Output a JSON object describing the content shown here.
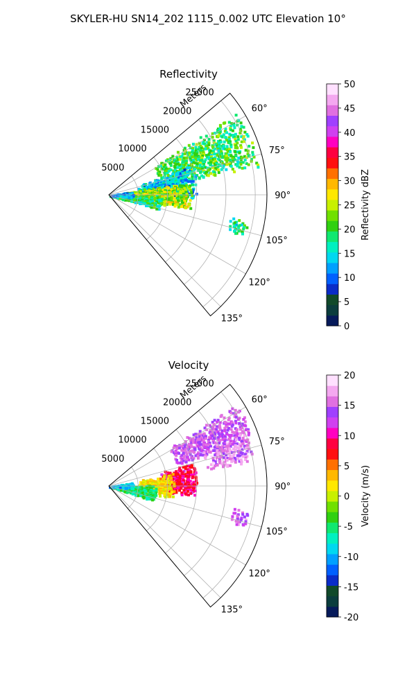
{
  "figure": {
    "title": "SKYLER-HU  SN14_202  1115_0.002 UTC Elevation 10°"
  },
  "chart_data": [
    {
      "type": "heatmap",
      "subtype": "polar-sector (PPI radar scan)",
      "title": "Reflectivity",
      "range_label": "Meters",
      "range_ticks": [
        5000,
        10000,
        15000,
        20000,
        25000
      ],
      "range_max": 27000,
      "azimuth_range_deg": [
        50,
        140
      ],
      "azimuth_ticks": [
        "60°",
        "75°",
        "90°",
        "105°",
        "120°",
        "135°"
      ],
      "azimuth_tick_values": [
        60,
        75,
        90,
        105,
        120,
        135
      ],
      "grid": true,
      "colorbar": {
        "label": "Reflectivity dBZ",
        "min": 0,
        "max": 50,
        "ticks": [
          "0",
          "5",
          "10",
          "15",
          "20",
          "25",
          "30",
          "35",
          "40",
          "45",
          "50"
        ],
        "tick_values": [
          0,
          5,
          10,
          15,
          20,
          25,
          30,
          35,
          40,
          45,
          50
        ],
        "colors": [
          "#061a5a",
          "#0b3d3d",
          "#114a2a",
          "#0a2cc8",
          "#0060ff",
          "#00a0ff",
          "#00d8f0",
          "#00f0c0",
          "#10e870",
          "#30d010",
          "#70e000",
          "#c8f000",
          "#ffe800",
          "#ffb800",
          "#ff7000",
          "#ff1010",
          "#ff0040",
          "#ff00c0",
          "#d040f0",
          "#a040ff",
          "#e070e0",
          "#f4a8f0",
          "#ffe0ff"
        ]
      },
      "echoes": [
        {
          "az": [
            57,
            79
          ],
          "r": [
            9000,
            26000
          ],
          "dbz": 20
        },
        {
          "az": [
            70,
            92
          ],
          "r": [
            5000,
            15000
          ],
          "dbz": 13
        },
        {
          "az": [
            80,
            100
          ],
          "r": [
            2000,
            14000
          ],
          "dbz": 24
        },
        {
          "az": [
            90,
            106
          ],
          "r": [
            0,
            9000
          ],
          "dbz": 19
        },
        {
          "az": [
            100,
            107
          ],
          "r": [
            21000,
            24000
          ],
          "dbz": 18
        },
        {
          "az": [
            80,
            95
          ],
          "r": [
            0,
            4000
          ],
          "dbz": 12
        }
      ]
    },
    {
      "type": "heatmap",
      "subtype": "polar-sector (PPI radar scan)",
      "title": "Velocity",
      "range_label": "Meters",
      "range_ticks": [
        5000,
        10000,
        15000,
        20000,
        25000
      ],
      "range_max": 27000,
      "azimuth_range_deg": [
        50,
        140
      ],
      "azimuth_ticks": [
        "60°",
        "75°",
        "90°",
        "105°",
        "120°",
        "135°"
      ],
      "azimuth_tick_values": [
        60,
        75,
        90,
        105,
        120,
        135
      ],
      "grid": true,
      "colorbar": {
        "label": "Velocity (m/s)",
        "min": -20,
        "max": 20,
        "ticks": [
          "-20",
          "-15",
          "-10",
          "-5",
          "0",
          "5",
          "10",
          "15",
          "20"
        ],
        "tick_values": [
          -20,
          -15,
          -10,
          -5,
          0,
          5,
          10,
          15,
          20
        ],
        "colors": [
          "#061a5a",
          "#0b3d3d",
          "#114a2a",
          "#0a2cc8",
          "#0060ff",
          "#00a0ff",
          "#00d8f0",
          "#00f0c0",
          "#10e870",
          "#30d010",
          "#70e000",
          "#c8f000",
          "#ffe800",
          "#ffb800",
          "#ff7000",
          "#ff1010",
          "#ff0040",
          "#ff00c0",
          "#d040f0",
          "#a040ff",
          "#e070e0",
          "#f4a8f0",
          "#ffe0ff"
        ]
      },
      "echoes": [
        {
          "az": [
            57,
            72
          ],
          "r": [
            12000,
            26000
          ],
          "vel": 14
        },
        {
          "az": [
            68,
            80
          ],
          "r": [
            17000,
            25000
          ],
          "vel": 16
        },
        {
          "az": [
            74,
            96
          ],
          "r": [
            9000,
            15000
          ],
          "vel": 9
        },
        {
          "az": [
            78,
            100
          ],
          "r": [
            5000,
            11000
          ],
          "vel": 2
        },
        {
          "az": [
            88,
            108
          ],
          "r": [
            0,
            8000
          ],
          "vel": -5
        },
        {
          "az": [
            80,
            95
          ],
          "r": [
            0,
            4000
          ],
          "vel": -9
        },
        {
          "az": [
            100,
            107
          ],
          "r": [
            21000,
            24000
          ],
          "vel": 15
        }
      ]
    }
  ]
}
